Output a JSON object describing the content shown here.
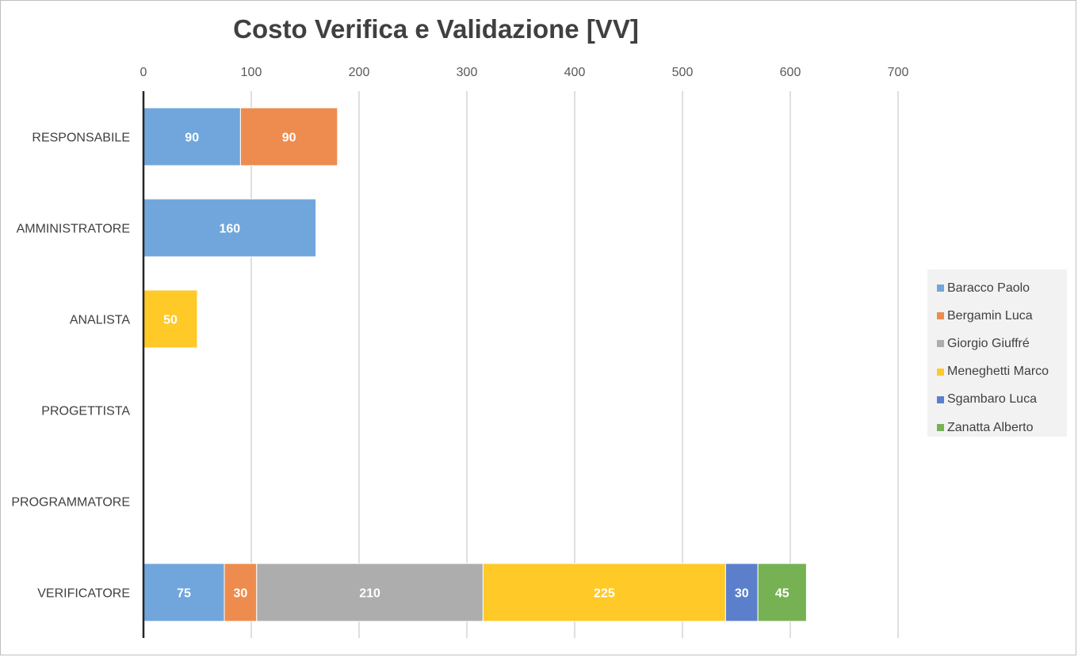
{
  "chart_data": {
    "type": "bar",
    "orientation": "horizontal",
    "stacked": true,
    "title": "Costo Verifica e Validazione [VV]",
    "categories": [
      "RESPONSABILE",
      "AMMINISTRATORE",
      "ANALISTA",
      "PROGETTISTA",
      "PROGRAMMATORE",
      "VERIFICATORE"
    ],
    "xlim": [
      0,
      700
    ],
    "xticks": [
      "0",
      "100",
      "200",
      "300",
      "400",
      "500",
      "600",
      "700"
    ],
    "x_axis_position": "top",
    "grid": true,
    "legend_position": "right",
    "series": [
      {
        "name": "Baracco Paolo",
        "color": "#70a6db",
        "values": [
          90,
          160,
          0,
          0,
          0,
          75
        ]
      },
      {
        "name": "Bergamin Luca",
        "color": "#ed8c4e",
        "values": [
          90,
          0,
          0,
          0,
          0,
          30
        ]
      },
      {
        "name": "Giorgio Giuffré",
        "color": "#adadad",
        "values": [
          0,
          0,
          0,
          0,
          0,
          210
        ]
      },
      {
        "name": "Meneghetti Marco",
        "color": "#ffc928",
        "values": [
          0,
          0,
          50,
          0,
          0,
          225
        ]
      },
      {
        "name": "Sgambaro Luca",
        "color": "#5b7fcb",
        "values": [
          0,
          0,
          0,
          0,
          0,
          30
        ]
      },
      {
        "name": "Zanatta Alberto",
        "color": "#76b153",
        "values": [
          0,
          0,
          0,
          0,
          0,
          45
        ]
      }
    ]
  }
}
